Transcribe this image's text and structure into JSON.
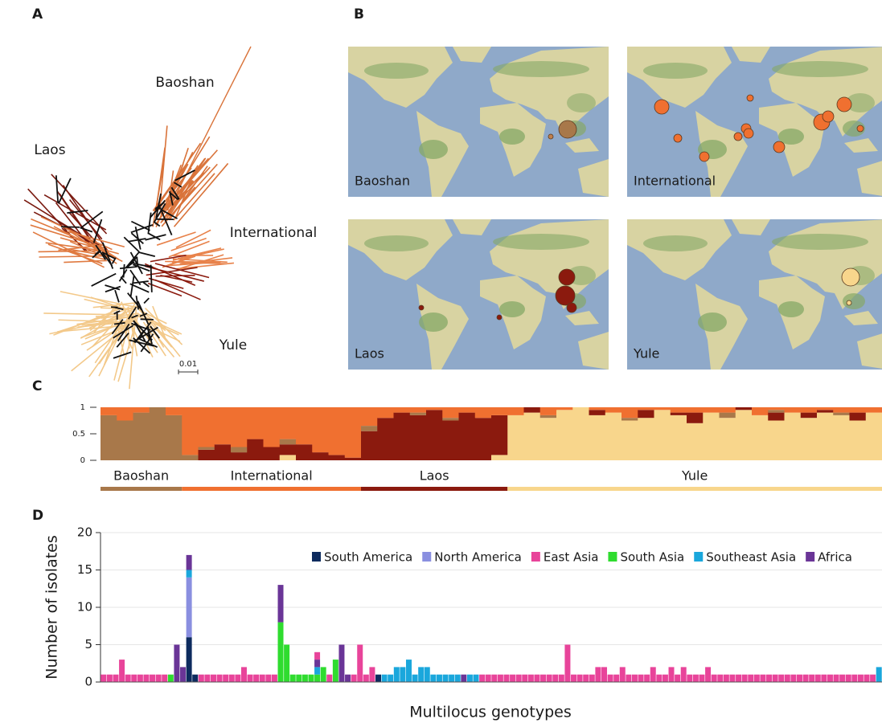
{
  "panels": {
    "A": {
      "label": "A",
      "tree_labels": [
        "Baoshan",
        "Laos",
        "International",
        "Yule"
      ],
      "scale_bar": "0.01"
    },
    "B": {
      "label": "B",
      "maps": [
        "Baoshan",
        "International",
        "Laos",
        "Yule"
      ]
    },
    "C": {
      "label": "C"
    },
    "D": {
      "label": "D"
    }
  },
  "chart_data": [
    {
      "type": "structure",
      "ylim": [
        0,
        1
      ],
      "yticks": [
        0,
        0.5,
        1
      ],
      "component_colors": [
        "#f8d68c",
        "#8b1a0e",
        "#a8784a",
        "#f07030"
      ],
      "groups": [
        {
          "name": "Baoshan",
          "color": "#a8784a",
          "values": [
            [
              0,
              0,
              0.85,
              0.15
            ],
            [
              0,
              0,
              0.75,
              0.25
            ],
            [
              0,
              0,
              0.9,
              0.1
            ],
            [
              0,
              0,
              1,
              0
            ],
            [
              0,
              0,
              0.85,
              0.15
            ]
          ]
        },
        {
          "name": "International",
          "color": "#f07030",
          "values": [
            [
              0,
              0,
              0.1,
              0.9
            ],
            [
              0,
              0.2,
              0.05,
              0.75
            ],
            [
              0,
              0.3,
              0,
              0.7
            ],
            [
              0,
              0.15,
              0.1,
              0.75
            ],
            [
              0,
              0.4,
              0,
              0.6
            ],
            [
              0,
              0.25,
              0,
              0.75
            ],
            [
              0.1,
              0.2,
              0.1,
              0.6
            ],
            [
              0,
              0.3,
              0,
              0.7
            ],
            [
              0,
              0.15,
              0,
              0.85
            ],
            [
              0,
              0.1,
              0,
              0.9
            ],
            [
              0,
              0.05,
              0,
              0.95
            ]
          ]
        },
        {
          "name": "Laos",
          "color": "#8b1a0e",
          "values": [
            [
              0,
              0.55,
              0.1,
              0.35
            ],
            [
              0,
              0.8,
              0,
              0.2
            ],
            [
              0,
              0.9,
              0,
              0.1
            ],
            [
              0,
              0.85,
              0.05,
              0.1
            ],
            [
              0,
              0.95,
              0,
              0.05
            ],
            [
              0,
              0.75,
              0.05,
              0.2
            ],
            [
              0,
              0.9,
              0,
              0.1
            ],
            [
              0,
              0.8,
              0,
              0.2
            ],
            [
              0.1,
              0.75,
              0,
              0.15
            ]
          ]
        },
        {
          "name": "Yule",
          "color": "#f8d68c",
          "values": [
            [
              0.85,
              0,
              0,
              0.15
            ],
            [
              0.9,
              0.1,
              0,
              0
            ],
            [
              0.8,
              0,
              0.05,
              0.15
            ],
            [
              0.95,
              0,
              0,
              0.05
            ],
            [
              1,
              0,
              0,
              0
            ],
            [
              0.85,
              0.1,
              0,
              0.05
            ],
            [
              0.9,
              0,
              0,
              0.1
            ],
            [
              0.75,
              0,
              0.05,
              0.2
            ],
            [
              0.8,
              0.15,
              0,
              0.05
            ],
            [
              0.95,
              0,
              0,
              0.05
            ],
            [
              0.85,
              0.05,
              0,
              0.1
            ],
            [
              0.7,
              0.2,
              0,
              0.1
            ],
            [
              0.9,
              0,
              0,
              0.1
            ],
            [
              0.8,
              0,
              0.1,
              0.1
            ],
            [
              0.95,
              0.05,
              0,
              0
            ],
            [
              0.85,
              0,
              0,
              0.15
            ],
            [
              0.75,
              0.15,
              0.05,
              0.05
            ],
            [
              0.9,
              0,
              0,
              0.1
            ],
            [
              0.8,
              0.1,
              0,
              0.1
            ],
            [
              0.9,
              0.05,
              0,
              0.05
            ],
            [
              0.85,
              0,
              0.05,
              0.1
            ],
            [
              0.75,
              0.15,
              0,
              0.1
            ],
            [
              0.9,
              0,
              0,
              0.1
            ]
          ]
        }
      ]
    },
    {
      "type": "bar",
      "stacked": true,
      "ylabel": "Number of isolates",
      "xlabel": "Multilocus genotypes",
      "ylim": [
        0,
        20
      ],
      "yticks": [
        0,
        5,
        10,
        15,
        20
      ],
      "grid": true,
      "legend": "top-right",
      "series": [
        {
          "name": "South America",
          "color": "#0d2b5e",
          "values": [
            0,
            0,
            0,
            0,
            0,
            0,
            0,
            0,
            0,
            0,
            0,
            0,
            0,
            0,
            6,
            1,
            0,
            0,
            0,
            0,
            0,
            0,
            0,
            0,
            0,
            0,
            0,
            0,
            0,
            0,
            0,
            0,
            0,
            0,
            0,
            0,
            0,
            0,
            0,
            0,
            0,
            0,
            0,
            0,
            0,
            1,
            0,
            0,
            0,
            0,
            0,
            0,
            0,
            0,
            0,
            0,
            0,
            0,
            0,
            0,
            0,
            0,
            0,
            0,
            0,
            0,
            0,
            0,
            0,
            0,
            0,
            0,
            0,
            0,
            0,
            0,
            0,
            0,
            0,
            0,
            0,
            0,
            0,
            0,
            0,
            0,
            0,
            0,
            0,
            0,
            0,
            0,
            0,
            0,
            0,
            0,
            0,
            0,
            0,
            0,
            0,
            0,
            0,
            0,
            0,
            0,
            0,
            0,
            0,
            0,
            0,
            0,
            0,
            0,
            0,
            0,
            0,
            0,
            0,
            0,
            0,
            0,
            0,
            0,
            0,
            0,
            0,
            0
          ]
        },
        {
          "name": "North America",
          "color": "#8a8fe0",
          "values": [
            0,
            0,
            0,
            0,
            0,
            0,
            0,
            0,
            0,
            0,
            0,
            0,
            0,
            0,
            8,
            0,
            0,
            0,
            0,
            0,
            0,
            0,
            0,
            0,
            0,
            0,
            0,
            0,
            0,
            0,
            0,
            0,
            0,
            0,
            0,
            0,
            0,
            0,
            0,
            0,
            0,
            0,
            0,
            0,
            0,
            0,
            0,
            0,
            0,
            0,
            0,
            0,
            0,
            0,
            0,
            0,
            0,
            0,
            0,
            0,
            0,
            0,
            0,
            0,
            0,
            0,
            0,
            0,
            0,
            0,
            0,
            0,
            0,
            0,
            0,
            0,
            0,
            0,
            0,
            0,
            0,
            0,
            0,
            0,
            0,
            0,
            0,
            0,
            0,
            0,
            0,
            0,
            0,
            0,
            0,
            0,
            0,
            0,
            0,
            0,
            0,
            0,
            0,
            0,
            0,
            0,
            0,
            0,
            0,
            0,
            0,
            0,
            0,
            0,
            0,
            0,
            0,
            0,
            0,
            0,
            0,
            0,
            0,
            0,
            0,
            0,
            0,
            0
          ]
        },
        {
          "name": "East Asia",
          "color": "#e8449a",
          "values": [
            1,
            1,
            1,
            3,
            1,
            1,
            1,
            1,
            1,
            1,
            1,
            0,
            0,
            0,
            0,
            0,
            1,
            1,
            1,
            1,
            1,
            1,
            1,
            2,
            1,
            1,
            1,
            1,
            1,
            0,
            0,
            0,
            0,
            0,
            0,
            1,
            0,
            1,
            0,
            0,
            0,
            1,
            5,
            1,
            2,
            0,
            0,
            0,
            0,
            0,
            0,
            0,
            0,
            0,
            0,
            0,
            0,
            0,
            0,
            0,
            0,
            0,
            1,
            1,
            1,
            1,
            1,
            1,
            1,
            1,
            1,
            1,
            1,
            1,
            1,
            1,
            5,
            1,
            1,
            1,
            1,
            2,
            2,
            1,
            1,
            2,
            1,
            1,
            1,
            1,
            2,
            1,
            1,
            2,
            1,
            2,
            1,
            1,
            1,
            2,
            1,
            1,
            1,
            1,
            1,
            1,
            1,
            1,
            1,
            1,
            1,
            1,
            1,
            1,
            1,
            1,
            1,
            1,
            1,
            1,
            1,
            1,
            1,
            1,
            1,
            1,
            1,
            0
          ]
        },
        {
          "name": "South Asia",
          "color": "#2fdc2f",
          "values": [
            0,
            0,
            0,
            0,
            0,
            0,
            0,
            0,
            0,
            0,
            0,
            1,
            0,
            0,
            0,
            0,
            0,
            0,
            0,
            0,
            0,
            0,
            0,
            0,
            0,
            0,
            0,
            0,
            0,
            8,
            5,
            1,
            1,
            1,
            1,
            1,
            2,
            0,
            3,
            0,
            0,
            0,
            0,
            0,
            0,
            0,
            0,
            0,
            0,
            0,
            0,
            0,
            0,
            0,
            0,
            0,
            0,
            0,
            0,
            0,
            0,
            0,
            0,
            0,
            0,
            0,
            0,
            0,
            0,
            0,
            0,
            0,
            0,
            0,
            0,
            0,
            0,
            0,
            0,
            0,
            0,
            0,
            0,
            0,
            0,
            0,
            0,
            0,
            0,
            0,
            0,
            0,
            0,
            0,
            0,
            0,
            0,
            0,
            0,
            0,
            0,
            0,
            0,
            0,
            0,
            0,
            0,
            0,
            0,
            0,
            0,
            0,
            0,
            0,
            0,
            0,
            0,
            0,
            0,
            0,
            0,
            0,
            0,
            0,
            0,
            0,
            0,
            0
          ]
        },
        {
          "name": "Southeast Asia",
          "color": "#1aa7dc",
          "values": [
            0,
            0,
            0,
            0,
            0,
            0,
            0,
            0,
            0,
            0,
            0,
            0,
            0,
            0,
            1,
            0,
            0,
            0,
            0,
            0,
            0,
            0,
            0,
            0,
            0,
            0,
            0,
            0,
            0,
            0,
            0,
            0,
            0,
            0,
            0,
            1,
            0,
            0,
            0,
            0,
            0,
            0,
            0,
            0,
            0,
            0,
            1,
            1,
            2,
            2,
            3,
            1,
            2,
            2,
            1,
            1,
            1,
            1,
            1,
            0,
            1,
            1,
            0,
            0,
            0,
            0,
            0,
            0,
            0,
            0,
            0,
            0,
            0,
            0,
            0,
            0,
            0,
            0,
            0,
            0,
            0,
            0,
            0,
            0,
            0,
            0,
            0,
            0,
            0,
            0,
            0,
            0,
            0,
            0,
            0,
            0,
            0,
            0,
            0,
            0,
            0,
            0,
            0,
            0,
            0,
            0,
            0,
            0,
            0,
            0,
            0,
            0,
            0,
            0,
            0,
            0,
            0,
            0,
            0,
            0,
            0,
            0,
            0,
            0,
            0,
            0,
            0,
            2
          ]
        },
        {
          "name": "Africa",
          "color": "#6a3597",
          "values": [
            0,
            0,
            0,
            0,
            0,
            0,
            0,
            0,
            0,
            0,
            0,
            0,
            5,
            2,
            2,
            0,
            0,
            0,
            0,
            0,
            0,
            0,
            0,
            0,
            0,
            0,
            0,
            0,
            0,
            5,
            0,
            0,
            0,
            0,
            0,
            1,
            0,
            0,
            0,
            5,
            1,
            0,
            0,
            0,
            0,
            0,
            0,
            0,
            0,
            0,
            0,
            0,
            0,
            0,
            0,
            0,
            0,
            0,
            0,
            1,
            0,
            0,
            0,
            0,
            0,
            0,
            0,
            0,
            0,
            0,
            0,
            0,
            0,
            0,
            0,
            0,
            0,
            0,
            0,
            0,
            0,
            0,
            0,
            0,
            0,
            0,
            0,
            0,
            0,
            0,
            0,
            0,
            0,
            0,
            0,
            0,
            0,
            0,
            0,
            0,
            0,
            0,
            0,
            0,
            0,
            0,
            0,
            0,
            0,
            0,
            0,
            0,
            0,
            0,
            0,
            0,
            0,
            0,
            0,
            0,
            0,
            0,
            0,
            0,
            0,
            0,
            0,
            0
          ]
        }
      ]
    }
  ]
}
